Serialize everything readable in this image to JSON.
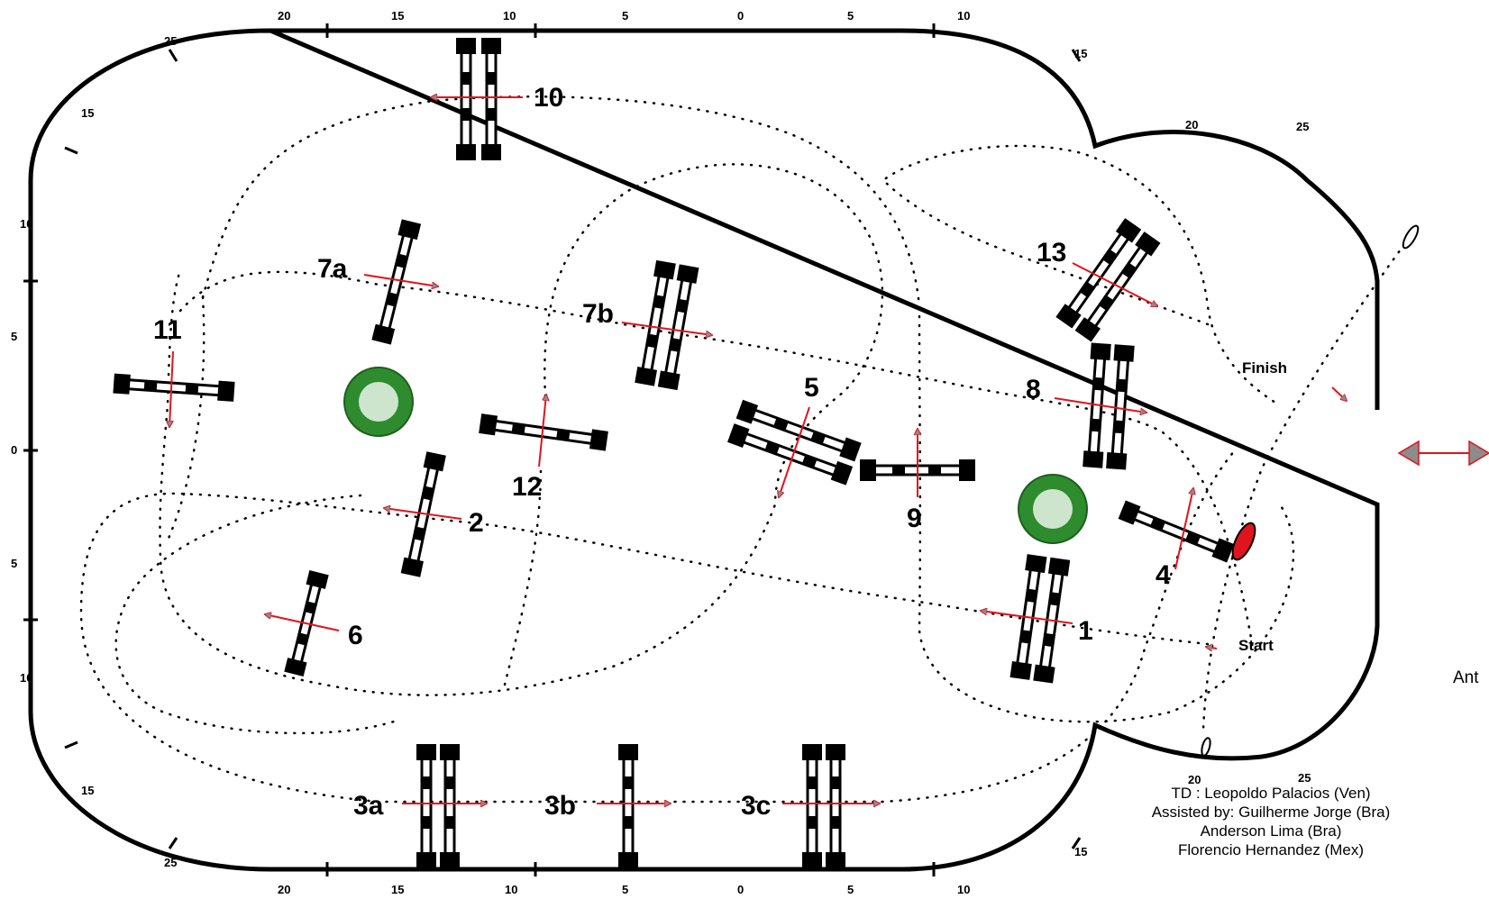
{
  "ruler_marks": {
    "top": [
      "20",
      "15",
      "10",
      "5",
      "0",
      "5",
      "10"
    ],
    "bottom": [
      "20",
      "15",
      "10",
      "5",
      "0",
      "5",
      "10"
    ],
    "left": [
      "25",
      "15",
      "10",
      "5",
      "0",
      "5",
      "10",
      "15",
      "25"
    ],
    "right_top": [
      "15",
      "20",
      "25"
    ],
    "right_bottom": [
      "15",
      "20",
      "25"
    ]
  },
  "fences": [
    {
      "id": "1",
      "label": "1"
    },
    {
      "id": "2",
      "label": "2"
    },
    {
      "id": "3a",
      "label": "3a"
    },
    {
      "id": "3b",
      "label": "3b"
    },
    {
      "id": "3c",
      "label": "3c"
    },
    {
      "id": "4",
      "label": "4"
    },
    {
      "id": "5",
      "label": "5"
    },
    {
      "id": "6",
      "label": "6"
    },
    {
      "id": "7a",
      "label": "7a"
    },
    {
      "id": "7b",
      "label": "7b"
    },
    {
      "id": "8",
      "label": "8"
    },
    {
      "id": "9",
      "label": "9"
    },
    {
      "id": "10",
      "label": "10"
    },
    {
      "id": "11",
      "label": "11"
    },
    {
      "id": "12",
      "label": "12"
    },
    {
      "id": "13",
      "label": "13"
    }
  ],
  "start_label": "Start",
  "finish_label": "Finish",
  "credits": {
    "line1": "TD : Leopoldo Palacios (Ven)",
    "line2": "Assisted by: Guilherme Jorge (Bra)",
    "line3": "Anderson Lima (Bra)",
    "line4": "Florencio Hernandez (Mex)"
  },
  "side_text": "Ant",
  "colors": {
    "arrow": "#e0141c",
    "arrow_fill": "#8c8c8c",
    "tree": "#2e8b2e"
  }
}
